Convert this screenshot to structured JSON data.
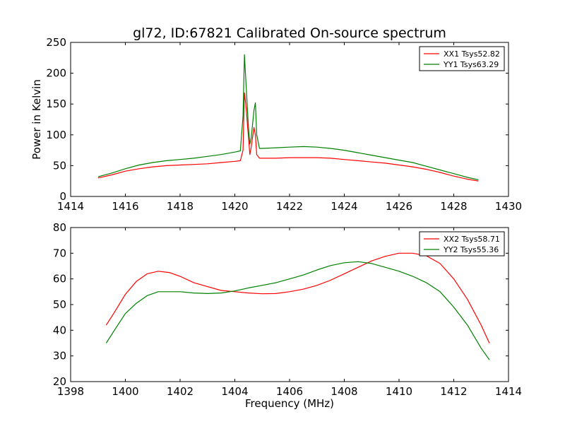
{
  "figure_title": "gl72, ID:67821 Calibrated On-source spectrum",
  "colors": {
    "xx": "#ff0000",
    "yy": "#008000",
    "axes": "#000000",
    "background": "#ffffff"
  },
  "chart_data": [
    {
      "type": "line",
      "title": "gl72, ID:67821 Calibrated On-source spectrum",
      "xlabel": "",
      "ylabel": "Power in Kelvin",
      "xlim": [
        1414,
        1430
      ],
      "ylim": [
        0,
        250
      ],
      "x_ticks": [
        1414,
        1416,
        1418,
        1420,
        1422,
        1424,
        1426,
        1428,
        1430
      ],
      "y_ticks": [
        0,
        50,
        100,
        150,
        200,
        250
      ],
      "grid": false,
      "legend_position": "top-right",
      "series": [
        {
          "name": "XX1 Tsys52.82",
          "color": "#ff0000",
          "points": [
            [
              1415.0,
              30
            ],
            [
              1415.5,
              35
            ],
            [
              1416.0,
              41
            ],
            [
              1416.5,
              45
            ],
            [
              1417.0,
              48
            ],
            [
              1417.5,
              50
            ],
            [
              1418.0,
              51
            ],
            [
              1418.5,
              52
            ],
            [
              1419.0,
              53
            ],
            [
              1419.5,
              55
            ],
            [
              1420.0,
              57
            ],
            [
              1420.2,
              58
            ],
            [
              1420.3,
              75
            ],
            [
              1420.35,
              168
            ],
            [
              1420.4,
              150
            ],
            [
              1420.5,
              95
            ],
            [
              1420.55,
              68
            ],
            [
              1420.6,
              80
            ],
            [
              1420.7,
              112
            ],
            [
              1420.75,
              100
            ],
            [
              1420.8,
              68
            ],
            [
              1420.9,
              62
            ],
            [
              1421.0,
              62
            ],
            [
              1421.5,
              62
            ],
            [
              1422.0,
              63
            ],
            [
              1422.5,
              63
            ],
            [
              1423.0,
              63
            ],
            [
              1423.5,
              62
            ],
            [
              1424.0,
              60
            ],
            [
              1424.5,
              58
            ],
            [
              1425.0,
              56
            ],
            [
              1425.5,
              54
            ],
            [
              1426.0,
              51
            ],
            [
              1426.5,
              48
            ],
            [
              1427.0,
              44
            ],
            [
              1427.5,
              39
            ],
            [
              1428.0,
              33
            ],
            [
              1428.5,
              28
            ],
            [
              1428.9,
              25
            ]
          ]
        },
        {
          "name": "YY1 Tsys63.29",
          "color": "#008000",
          "points": [
            [
              1415.0,
              32
            ],
            [
              1415.5,
              38
            ],
            [
              1416.0,
              45
            ],
            [
              1416.5,
              51
            ],
            [
              1417.0,
              55
            ],
            [
              1417.5,
              58
            ],
            [
              1418.0,
              60
            ],
            [
              1418.5,
              62
            ],
            [
              1419.0,
              65
            ],
            [
              1419.5,
              68
            ],
            [
              1420.0,
              72
            ],
            [
              1420.2,
              74
            ],
            [
              1420.3,
              130
            ],
            [
              1420.35,
              230
            ],
            [
              1420.4,
              190
            ],
            [
              1420.5,
              110
            ],
            [
              1420.55,
              85
            ],
            [
              1420.6,
              95
            ],
            [
              1420.7,
              140
            ],
            [
              1420.75,
              152
            ],
            [
              1420.8,
              100
            ],
            [
              1420.9,
              78
            ],
            [
              1421.0,
              78
            ],
            [
              1421.5,
              79
            ],
            [
              1422.0,
              80
            ],
            [
              1422.5,
              81
            ],
            [
              1423.0,
              80
            ],
            [
              1423.5,
              78
            ],
            [
              1424.0,
              75
            ],
            [
              1424.5,
              71
            ],
            [
              1425.0,
              67
            ],
            [
              1425.5,
              63
            ],
            [
              1426.0,
              59
            ],
            [
              1426.5,
              55
            ],
            [
              1427.0,
              49
            ],
            [
              1427.5,
              43
            ],
            [
              1428.0,
              37
            ],
            [
              1428.5,
              31
            ],
            [
              1428.9,
              27
            ]
          ]
        }
      ]
    },
    {
      "type": "line",
      "title": "",
      "xlabel": "Frequency (MHz)",
      "ylabel": "",
      "xlim": [
        1398,
        1414
      ],
      "ylim": [
        20,
        80
      ],
      "x_ticks": [
        1398,
        1400,
        1402,
        1404,
        1406,
        1408,
        1410,
        1412,
        1414
      ],
      "y_ticks": [
        20,
        30,
        40,
        50,
        60,
        70,
        80
      ],
      "grid": false,
      "legend_position": "top-right",
      "series": [
        {
          "name": "XX2 Tsys58.71",
          "color": "#ff0000",
          "points": [
            [
              1399.3,
              42
            ],
            [
              1399.6,
              47
            ],
            [
              1400.0,
              54
            ],
            [
              1400.4,
              59
            ],
            [
              1400.8,
              62
            ],
            [
              1401.2,
              63
            ],
            [
              1401.6,
              62.5
            ],
            [
              1402.0,
              61
            ],
            [
              1402.5,
              58.5
            ],
            [
              1403.0,
              57
            ],
            [
              1403.5,
              55.5
            ],
            [
              1404.0,
              55
            ],
            [
              1404.5,
              54.5
            ],
            [
              1405.0,
              54.2
            ],
            [
              1405.5,
              54.3
            ],
            [
              1406.0,
              55
            ],
            [
              1406.5,
              56
            ],
            [
              1407.0,
              57.5
            ],
            [
              1407.5,
              59.5
            ],
            [
              1408.0,
              62
            ],
            [
              1408.5,
              64.5
            ],
            [
              1409.0,
              67
            ],
            [
              1409.5,
              68.8
            ],
            [
              1410.0,
              70
            ],
            [
              1410.5,
              70
            ],
            [
              1411.0,
              69
            ],
            [
              1411.5,
              66
            ],
            [
              1412.0,
              60
            ],
            [
              1412.5,
              52
            ],
            [
              1413.0,
              42
            ],
            [
              1413.3,
              35
            ]
          ]
        },
        {
          "name": "YY2 Tsys55.36",
          "color": "#008000",
          "points": [
            [
              1399.3,
              35
            ],
            [
              1399.6,
              40
            ],
            [
              1400.0,
              46.5
            ],
            [
              1400.4,
              50.5
            ],
            [
              1400.8,
              53.5
            ],
            [
              1401.2,
              55
            ],
            [
              1401.6,
              55
            ],
            [
              1402.0,
              55
            ],
            [
              1402.5,
              54.5
            ],
            [
              1403.0,
              54.3
            ],
            [
              1403.5,
              54.5
            ],
            [
              1404.0,
              55.3
            ],
            [
              1404.5,
              56.5
            ],
            [
              1405.0,
              57.5
            ],
            [
              1405.5,
              58.5
            ],
            [
              1406.0,
              60
            ],
            [
              1406.5,
              61.5
            ],
            [
              1407.0,
              63.5
            ],
            [
              1407.5,
              65.2
            ],
            [
              1408.0,
              66.3
            ],
            [
              1408.5,
              66.7
            ],
            [
              1409.0,
              66
            ],
            [
              1409.5,
              64.5
            ],
            [
              1410.0,
              63
            ],
            [
              1410.5,
              61
            ],
            [
              1411.0,
              58.5
            ],
            [
              1411.5,
              55
            ],
            [
              1412.0,
              49
            ],
            [
              1412.5,
              42
            ],
            [
              1413.0,
              33
            ],
            [
              1413.3,
              28.5
            ]
          ]
        }
      ]
    }
  ]
}
